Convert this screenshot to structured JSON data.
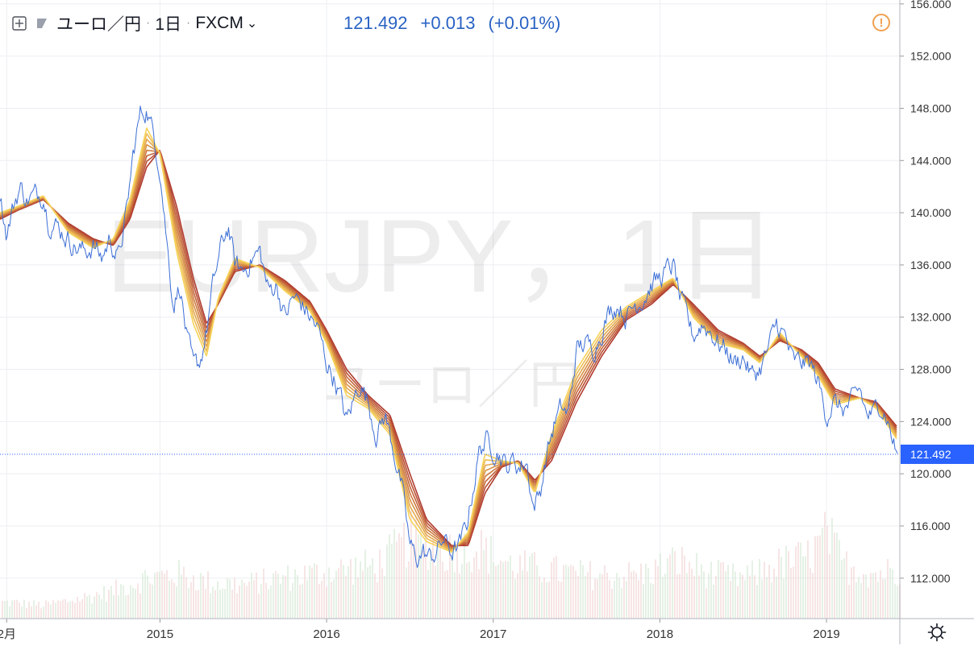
{
  "header": {
    "symbol_name": "ユーロ／円",
    "interval": "1日",
    "exchange": "FXCM",
    "separator": "·",
    "chevron": "⌄"
  },
  "quote": {
    "last": "121.492",
    "change": "+0.013",
    "change_pct": "(+0.01%)"
  },
  "watermark": {
    "line1": "EURJPY，1日",
    "line2": "ユーロ／円"
  },
  "icons": {
    "add_compare": "plus-box-icon",
    "symbol_flag": "flag-icon",
    "alert": "exclamation-circle-icon",
    "settings": "gear-icon"
  },
  "colors": {
    "price_line": "#3d6fd6",
    "ribbon_fast": "#f7d25a",
    "ribbon_slow": "#b03a2e",
    "last_price_badge": "#2962ff",
    "grid": "#eceef2",
    "axis_text": "#333333",
    "alert": "#f0a050"
  },
  "chart_data": {
    "type": "line",
    "title": "",
    "xlabel": "",
    "ylabel": "",
    "x_tick_labels": [
      "2月",
      "2015",
      "2016",
      "2017",
      "2018",
      "2019"
    ],
    "x_tick_values": [
      2014.08,
      2015.0,
      2016.0,
      2017.0,
      2018.0,
      2019.0
    ],
    "xlim": [
      2014.04,
      2019.44
    ],
    "y_tick_labels": [
      "156.000",
      "152.000",
      "148.000",
      "144.000",
      "140.000",
      "136.000",
      "132.000",
      "128.000",
      "124.000",
      "120.000",
      "116.000",
      "112.000"
    ],
    "y_tick_values": [
      156,
      152,
      148,
      144,
      140,
      136,
      132,
      128,
      124,
      120,
      116,
      112
    ],
    "ylim": [
      108.9,
      156.3
    ],
    "last_price": 121.492,
    "last_price_label": "121.492",
    "grid": true,
    "legend": "none",
    "series": [
      {
        "kind": "price",
        "points": [
          [
            2014.04,
            141.5
          ],
          [
            2014.08,
            138.3
          ],
          [
            2014.12,
            140.5
          ],
          [
            2014.16,
            142.0
          ],
          [
            2014.2,
            141.0
          ],
          [
            2014.25,
            141.3
          ],
          [
            2014.3,
            141.5
          ],
          [
            2014.33,
            139.5
          ],
          [
            2014.38,
            139.0
          ],
          [
            2014.45,
            138.0
          ],
          [
            2014.5,
            137.3
          ],
          [
            2014.55,
            137.0
          ],
          [
            2014.6,
            137.5
          ],
          [
            2014.65,
            136.5
          ],
          [
            2014.7,
            138.0
          ],
          [
            2014.75,
            136.5
          ],
          [
            2014.8,
            140.0
          ],
          [
            2014.84,
            144.5
          ],
          [
            2014.88,
            147.5
          ],
          [
            2014.92,
            148.0
          ],
          [
            2014.96,
            146.0
          ],
          [
            2015.0,
            143.5
          ],
          [
            2015.04,
            138.0
          ],
          [
            2015.08,
            133.0
          ],
          [
            2015.12,
            134.5
          ],
          [
            2015.16,
            130.5
          ],
          [
            2015.2,
            128.0
          ],
          [
            2015.24,
            128.5
          ],
          [
            2015.28,
            131.0
          ],
          [
            2015.32,
            134.5
          ],
          [
            2015.37,
            137.5
          ],
          [
            2015.41,
            139.0
          ],
          [
            2015.45,
            136.0
          ],
          [
            2015.5,
            135.5
          ],
          [
            2015.55,
            136.5
          ],
          [
            2015.6,
            137.0
          ],
          [
            2015.65,
            134.0
          ],
          [
            2015.7,
            134.5
          ],
          [
            2015.75,
            132.0
          ],
          [
            2015.8,
            133.5
          ],
          [
            2015.85,
            133.0
          ],
          [
            2015.9,
            132.0
          ],
          [
            2015.95,
            131.0
          ],
          [
            2016.0,
            128.5
          ],
          [
            2016.04,
            127.5
          ],
          [
            2016.08,
            126.0
          ],
          [
            2016.12,
            124.0
          ],
          [
            2016.16,
            125.5
          ],
          [
            2016.2,
            127.0
          ],
          [
            2016.25,
            125.5
          ],
          [
            2016.3,
            123.0
          ],
          [
            2016.35,
            124.5
          ],
          [
            2016.4,
            122.0
          ],
          [
            2016.45,
            119.0
          ],
          [
            2016.5,
            114.5
          ],
          [
            2016.54,
            113.5
          ],
          [
            2016.58,
            114.0
          ],
          [
            2016.62,
            113.5
          ],
          [
            2016.66,
            114.0
          ],
          [
            2016.7,
            115.0
          ],
          [
            2016.75,
            114.0
          ],
          [
            2016.8,
            114.5
          ],
          [
            2016.84,
            116.0
          ],
          [
            2016.88,
            119.0
          ],
          [
            2016.92,
            122.0
          ],
          [
            2016.96,
            122.5
          ],
          [
            2017.0,
            122.0
          ],
          [
            2017.04,
            121.5
          ],
          [
            2017.08,
            120.5
          ],
          [
            2017.12,
            121.0
          ],
          [
            2017.16,
            120.5
          ],
          [
            2017.2,
            121.0
          ],
          [
            2017.24,
            117.5
          ],
          [
            2017.28,
            118.5
          ],
          [
            2017.32,
            121.5
          ],
          [
            2017.37,
            124.0
          ],
          [
            2017.41,
            125.0
          ],
          [
            2017.45,
            124.5
          ],
          [
            2017.5,
            129.5
          ],
          [
            2017.55,
            130.0
          ],
          [
            2017.6,
            129.5
          ],
          [
            2017.65,
            131.0
          ],
          [
            2017.7,
            132.5
          ],
          [
            2017.75,
            133.0
          ],
          [
            2017.8,
            132.0
          ],
          [
            2017.85,
            133.0
          ],
          [
            2017.9,
            133.5
          ],
          [
            2017.95,
            134.5
          ],
          [
            2018.0,
            135.0
          ],
          [
            2018.04,
            135.5
          ],
          [
            2018.08,
            136.0
          ],
          [
            2018.12,
            133.5
          ],
          [
            2018.16,
            132.0
          ],
          [
            2018.2,
            130.5
          ],
          [
            2018.25,
            131.5
          ],
          [
            2018.3,
            131.0
          ],
          [
            2018.35,
            130.0
          ],
          [
            2018.4,
            129.5
          ],
          [
            2018.45,
            128.5
          ],
          [
            2018.5,
            129.0
          ],
          [
            2018.55,
            127.5
          ],
          [
            2018.6,
            128.0
          ],
          [
            2018.65,
            129.5
          ],
          [
            2018.7,
            131.5
          ],
          [
            2018.75,
            130.5
          ],
          [
            2018.8,
            128.5
          ],
          [
            2018.85,
            128.5
          ],
          [
            2018.9,
            128.5
          ],
          [
            2018.95,
            127.0
          ],
          [
            2019.0,
            124.5
          ],
          [
            2019.04,
            125.5
          ],
          [
            2019.08,
            125.0
          ],
          [
            2019.12,
            125.0
          ],
          [
            2019.16,
            125.5
          ],
          [
            2019.2,
            126.5
          ],
          [
            2019.24,
            124.5
          ],
          [
            2019.28,
            124.5
          ],
          [
            2019.32,
            125.5
          ],
          [
            2019.36,
            124.5
          ],
          [
            2019.4,
            122.5
          ],
          [
            2019.42,
            121.6
          ],
          [
            2019.43,
            121.5
          ]
        ]
      },
      {
        "kind": "moving-average-ribbon",
        "count": 8,
        "fast": [
          [
            2014.04,
            140.0
          ],
          [
            2014.15,
            140.5
          ],
          [
            2014.3,
            141.3
          ],
          [
            2014.45,
            138.5
          ],
          [
            2014.6,
            137.3
          ],
          [
            2014.72,
            138.0
          ],
          [
            2014.82,
            141.0
          ],
          [
            2014.92,
            146.5
          ],
          [
            2015.0,
            144.5
          ],
          [
            2015.1,
            137.0
          ],
          [
            2015.2,
            131.5
          ],
          [
            2015.28,
            129.0
          ],
          [
            2015.35,
            133.5
          ],
          [
            2015.45,
            136.5
          ],
          [
            2015.6,
            135.8
          ],
          [
            2015.75,
            134.0
          ],
          [
            2015.9,
            132.5
          ],
          [
            2016.0,
            130.0
          ],
          [
            2016.12,
            126.0
          ],
          [
            2016.25,
            125.0
          ],
          [
            2016.38,
            123.0
          ],
          [
            2016.5,
            116.5
          ],
          [
            2016.6,
            114.8
          ],
          [
            2016.75,
            114.0
          ],
          [
            2016.85,
            115.5
          ],
          [
            2016.95,
            121.5
          ],
          [
            2017.05,
            121.0
          ],
          [
            2017.15,
            120.8
          ],
          [
            2017.25,
            118.5
          ],
          [
            2017.35,
            123.0
          ],
          [
            2017.5,
            128.0
          ],
          [
            2017.65,
            131.0
          ],
          [
            2017.8,
            132.8
          ],
          [
            2017.95,
            134.0
          ],
          [
            2018.08,
            135.0
          ],
          [
            2018.2,
            132.0
          ],
          [
            2018.35,
            130.0
          ],
          [
            2018.5,
            129.5
          ],
          [
            2018.6,
            128.5
          ],
          [
            2018.72,
            130.8
          ],
          [
            2018.85,
            129.0
          ],
          [
            2018.95,
            127.5
          ],
          [
            2019.05,
            125.3
          ],
          [
            2019.2,
            125.8
          ],
          [
            2019.3,
            125.0
          ],
          [
            2019.43,
            122.5
          ]
        ],
        "slow": [
          [
            2014.04,
            139.5
          ],
          [
            2014.15,
            140.2
          ],
          [
            2014.3,
            141.0
          ],
          [
            2014.45,
            139.2
          ],
          [
            2014.6,
            138.0
          ],
          [
            2014.72,
            137.5
          ],
          [
            2014.82,
            139.5
          ],
          [
            2014.92,
            143.5
          ],
          [
            2015.0,
            144.8
          ],
          [
            2015.1,
            140.5
          ],
          [
            2015.2,
            135.0
          ],
          [
            2015.28,
            131.5
          ],
          [
            2015.35,
            133.0
          ],
          [
            2015.45,
            135.5
          ],
          [
            2015.6,
            136.0
          ],
          [
            2015.75,
            134.8
          ],
          [
            2015.9,
            133.2
          ],
          [
            2016.0,
            131.0
          ],
          [
            2016.12,
            128.0
          ],
          [
            2016.25,
            126.0
          ],
          [
            2016.38,
            124.5
          ],
          [
            2016.5,
            120.0
          ],
          [
            2016.6,
            116.5
          ],
          [
            2016.75,
            114.5
          ],
          [
            2016.85,
            114.5
          ],
          [
            2016.95,
            118.5
          ],
          [
            2017.05,
            120.5
          ],
          [
            2017.15,
            121.0
          ],
          [
            2017.25,
            119.5
          ],
          [
            2017.35,
            121.0
          ],
          [
            2017.5,
            125.5
          ],
          [
            2017.65,
            129.0
          ],
          [
            2017.8,
            131.8
          ],
          [
            2017.95,
            133.0
          ],
          [
            2018.08,
            134.5
          ],
          [
            2018.2,
            133.0
          ],
          [
            2018.35,
            131.0
          ],
          [
            2018.5,
            130.0
          ],
          [
            2018.6,
            129.0
          ],
          [
            2018.72,
            130.2
          ],
          [
            2018.85,
            129.5
          ],
          [
            2018.95,
            128.5
          ],
          [
            2019.05,
            126.5
          ],
          [
            2019.2,
            125.8
          ],
          [
            2019.3,
            125.5
          ],
          [
            2019.43,
            123.5
          ]
        ]
      },
      {
        "kind": "volume",
        "note": "volume histogram scaled to bottom band, no axis",
        "points": [
          [
            2014.1,
            0.18
          ],
          [
            2014.3,
            0.15
          ],
          [
            2014.5,
            0.22
          ],
          [
            2014.7,
            0.3
          ],
          [
            2014.9,
            0.45
          ],
          [
            2015.1,
            0.5
          ],
          [
            2015.3,
            0.4
          ],
          [
            2015.5,
            0.38
          ],
          [
            2015.7,
            0.45
          ],
          [
            2015.9,
            0.5
          ],
          [
            2016.1,
            0.55
          ],
          [
            2016.3,
            0.6
          ],
          [
            2016.5,
            0.9
          ],
          [
            2016.7,
            0.75
          ],
          [
            2016.9,
            0.8
          ],
          [
            2017.1,
            0.6
          ],
          [
            2017.3,
            0.55
          ],
          [
            2017.5,
            0.5
          ],
          [
            2017.7,
            0.48
          ],
          [
            2017.9,
            0.5
          ],
          [
            2018.1,
            0.65
          ],
          [
            2018.3,
            0.5
          ],
          [
            2018.5,
            0.45
          ],
          [
            2018.7,
            0.6
          ],
          [
            2018.9,
            0.7
          ],
          [
            2019.0,
            0.95
          ],
          [
            2019.1,
            0.6
          ],
          [
            2019.3,
            0.5
          ],
          [
            2019.42,
            0.55
          ]
        ]
      }
    ]
  }
}
